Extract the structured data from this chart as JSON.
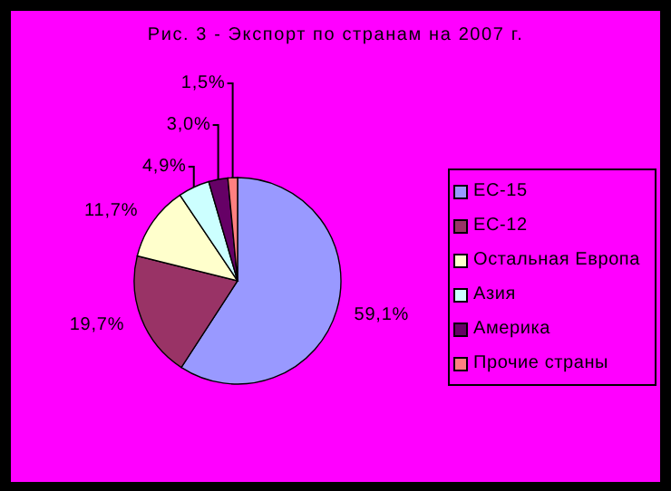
{
  "chart_data": {
    "type": "pie",
    "title": "Рис. 3 - Экспорт по странам на 2007 г.",
    "categories": [
      "ЕС-15",
      "ЕС-12",
      "Остальная Европа",
      "Азия",
      "Америка",
      "Прочие страны"
    ],
    "values": [
      59.1,
      19.7,
      11.7,
      4.9,
      3.0,
      1.5
    ],
    "value_labels": [
      "59,1%",
      "19,7%",
      "11,7%",
      "4,9%",
      "3,0%",
      "1,5%"
    ],
    "colors": [
      "#9999ff",
      "#993366",
      "#ffffcc",
      "#ccffff",
      "#660066",
      "#ff8080"
    ],
    "legend": "right"
  }
}
